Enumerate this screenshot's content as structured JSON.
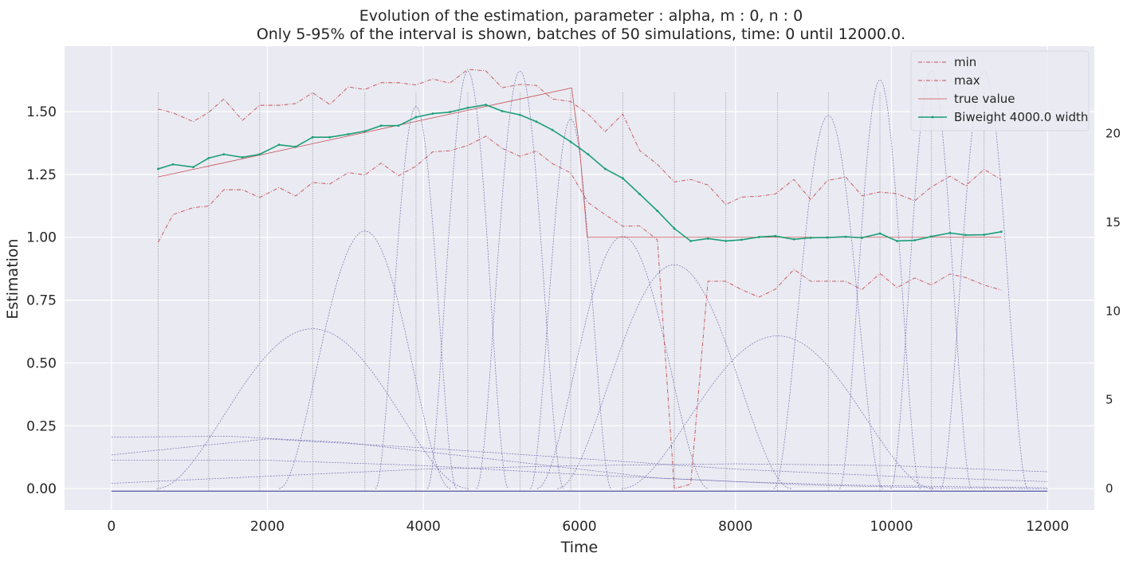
{
  "chart_data": {
    "type": "line",
    "title": "Evolution of the estimation, parameter : alpha, m : 0, n : 0",
    "subtitle": "Only 5-95% of the interval is shown, batches of 50 simulations, time: 0 until 12000.0.",
    "xlabel": "Time",
    "ylabel": "Estimation",
    "xlim": [
      -600,
      12600
    ],
    "ylim": [
      -0.085,
      1.76
    ],
    "xticks": [
      0,
      2000,
      4000,
      6000,
      8000,
      10000,
      12000
    ],
    "yticks": [
      0.0,
      0.25,
      0.5,
      0.75,
      1.0,
      1.25,
      1.5
    ],
    "ytick_labels": [
      "0.00",
      "0.25",
      "0.50",
      "0.75",
      "1.00",
      "1.25",
      "1.50"
    ],
    "y2lim": [
      -1.2,
      24.9
    ],
    "y2ticks": [
      0,
      5,
      10,
      15,
      20
    ],
    "grid": true,
    "legend_position": "top-right",
    "colors": {
      "background": "#eaeaf2",
      "grid": "#ffffff",
      "minmax": "#c44e52",
      "truevalue": "#c44e52",
      "estimate": "#1b9e77",
      "kernel": "#5a5aa8",
      "vline": "#9a9aa0"
    },
    "series": [
      {
        "name": "min",
        "style": "dashdot",
        "x": [
          600,
          789,
          1050,
          1247,
          1442,
          1680,
          1901,
          2148,
          2362,
          2580,
          2800,
          3036,
          3250,
          3458,
          3681,
          3905,
          4120,
          4337,
          4569,
          4800,
          5008,
          5238,
          5448,
          5653,
          5888,
          6111,
          6330,
          6555,
          6772,
          6999,
          7216,
          7426,
          7647,
          7877,
          8076,
          8301,
          8510,
          8749,
          8964,
          9175,
          9411,
          9622,
          9852,
          10071,
          10298,
          10510,
          10750,
          10951,
          11187,
          11408
        ],
        "y": [
          0.98,
          1.09,
          1.118,
          1.124,
          1.189,
          1.189,
          1.158,
          1.198,
          1.164,
          1.218,
          1.212,
          1.257,
          1.248,
          1.295,
          1.245,
          1.283,
          1.34,
          1.344,
          1.365,
          1.402,
          1.354,
          1.322,
          1.343,
          1.293,
          1.256,
          1.138,
          1.09,
          1.044,
          1.045,
          0.99,
          0.0,
          0.018,
          0.825,
          0.825,
          0.792,
          0.762,
          0.793,
          0.872,
          0.825,
          0.825,
          0.825,
          0.792,
          0.856,
          0.8,
          0.838,
          0.81,
          0.854,
          0.84,
          0.81,
          0.79
        ]
      },
      {
        "name": "max",
        "style": "dashdot",
        "x": [
          600,
          789,
          1050,
          1247,
          1442,
          1680,
          1901,
          2148,
          2362,
          2580,
          2800,
          3036,
          3250,
          3458,
          3681,
          3905,
          4120,
          4337,
          4569,
          4800,
          5008,
          5238,
          5448,
          5653,
          5888,
          6111,
          6330,
          6555,
          6772,
          6999,
          7216,
          7426,
          7647,
          7877,
          8076,
          8301,
          8510,
          8749,
          8964,
          9175,
          9411,
          9622,
          9852,
          10071,
          10298,
          10510,
          10750,
          10951,
          11187,
          11408
        ],
        "y": [
          1.51,
          1.495,
          1.46,
          1.497,
          1.55,
          1.465,
          1.525,
          1.525,
          1.532,
          1.575,
          1.528,
          1.598,
          1.588,
          1.615,
          1.615,
          1.606,
          1.63,
          1.613,
          1.668,
          1.662,
          1.595,
          1.608,
          1.604,
          1.55,
          1.54,
          1.49,
          1.42,
          1.49,
          1.345,
          1.29,
          1.22,
          1.23,
          1.208,
          1.13,
          1.16,
          1.163,
          1.172,
          1.23,
          1.15,
          1.225,
          1.24,
          1.165,
          1.18,
          1.173,
          1.145,
          1.2,
          1.243,
          1.205,
          1.27,
          1.229
        ]
      },
      {
        "name": "true value",
        "style": "solid-thin",
        "x": [
          600,
          5900,
          6000,
          6100,
          11408
        ],
        "y": [
          1.24,
          1.594,
          1.36,
          1.0,
          1.0
        ]
      },
      {
        "name": "Biweight 4000.0 width",
        "style": "solid",
        "x": [
          600,
          789,
          1050,
          1247,
          1442,
          1680,
          1901,
          2148,
          2362,
          2580,
          2800,
          3036,
          3250,
          3458,
          3681,
          3905,
          4120,
          4337,
          4569,
          4800,
          5008,
          5238,
          5448,
          5653,
          5888,
          6111,
          6330,
          6555,
          6772,
          6999,
          7216,
          7426,
          7647,
          7877,
          8076,
          8301,
          8510,
          8749,
          8964,
          9175,
          9411,
          9622,
          9852,
          10071,
          10298,
          10510,
          10750,
          10951,
          11187,
          11408
        ],
        "y": [
          1.272,
          1.29,
          1.279,
          1.315,
          1.33,
          1.318,
          1.33,
          1.368,
          1.36,
          1.398,
          1.398,
          1.41,
          1.422,
          1.444,
          1.444,
          1.478,
          1.492,
          1.498,
          1.515,
          1.527,
          1.502,
          1.487,
          1.46,
          1.427,
          1.38,
          1.33,
          1.272,
          1.235,
          1.172,
          1.105,
          1.035,
          0.985,
          0.995,
          0.985,
          0.99,
          1.001,
          1.005,
          0.992,
          0.998,
          0.999,
          1.002,
          0.998,
          1.015,
          0.985,
          0.988,
          1.003,
          1.017,
          1.009,
          1.01,
          1.022
        ]
      }
    ],
    "kernel_curves": [
      {
        "type": "wide",
        "values": [
          [
            0,
            1.9
          ],
          [
            2000,
            2.8
          ],
          [
            4000,
            2.3
          ],
          [
            6000,
            1.7
          ],
          [
            8000,
            1.1
          ],
          [
            10000,
            0.7
          ],
          [
            12000,
            0.4
          ]
        ]
      },
      {
        "type": "wide",
        "values": [
          [
            0,
            2.9
          ],
          [
            1500,
            2.95
          ],
          [
            3000,
            2.6
          ],
          [
            5000,
            1.6
          ],
          [
            7000,
            0.6
          ],
          [
            9000,
            0.2
          ],
          [
            10500,
            0.05
          ],
          [
            12000,
            0.0
          ]
        ]
      },
      {
        "type": "wide",
        "values": [
          [
            0,
            0.3
          ],
          [
            2000,
            0.7
          ],
          [
            4000,
            1.1
          ],
          [
            6000,
            1.3
          ],
          [
            8000,
            1.4
          ],
          [
            10000,
            1.3
          ],
          [
            12000,
            0.95
          ]
        ]
      },
      {
        "type": "wide",
        "values": [
          [
            0,
            1.6
          ],
          [
            2000,
            1.6
          ],
          [
            4000,
            1.3
          ],
          [
            6000,
            0.8
          ],
          [
            8000,
            0.4
          ],
          [
            9500,
            0.2
          ],
          [
            11000,
            0.1
          ],
          [
            12000,
            0.05
          ]
        ]
      },
      {
        "type": "peak",
        "center": 2580,
        "halfwidth": 2000,
        "height": 9.0
      },
      {
        "type": "peak",
        "center": 3250,
        "halfwidth": 1100,
        "height": 14.5
      },
      {
        "type": "peak",
        "center": 3905,
        "halfwidth": 520,
        "height": 21.5
      },
      {
        "type": "peak",
        "center": 4569,
        "halfwidth": 520,
        "height": 23.5
      },
      {
        "type": "peak",
        "center": 5238,
        "halfwidth": 560,
        "height": 23.5
      },
      {
        "type": "peak",
        "center": 5888,
        "halfwidth": 520,
        "height": 20.8
      },
      {
        "type": "peak",
        "center": 6555,
        "halfwidth": 1100,
        "height": 14.2
      },
      {
        "type": "peak",
        "center": 7216,
        "halfwidth": 1500,
        "height": 12.6
      },
      {
        "type": "peak",
        "center": 8540,
        "halfwidth": 2000,
        "height": 8.6
      },
      {
        "type": "peak",
        "center": 9190,
        "halfwidth": 700,
        "height": 21.0
      },
      {
        "type": "peak",
        "center": 9852,
        "halfwidth": 520,
        "height": 23.0
      },
      {
        "type": "peak",
        "center": 10510,
        "halfwidth": 520,
        "height": 23.5
      },
      {
        "type": "peak",
        "center": 11187,
        "halfwidth": 560,
        "height": 23.5
      }
    ],
    "vlines": [
      600,
      1247,
      1901,
      2580,
      3250,
      3905,
      4569,
      5238,
      5888,
      6555,
      7216,
      7877,
      8540,
      9190,
      9852,
      10510,
      11187
    ]
  },
  "legend": {
    "items": [
      "min",
      "max",
      "true value",
      "Biweight 4000.0 width"
    ]
  }
}
